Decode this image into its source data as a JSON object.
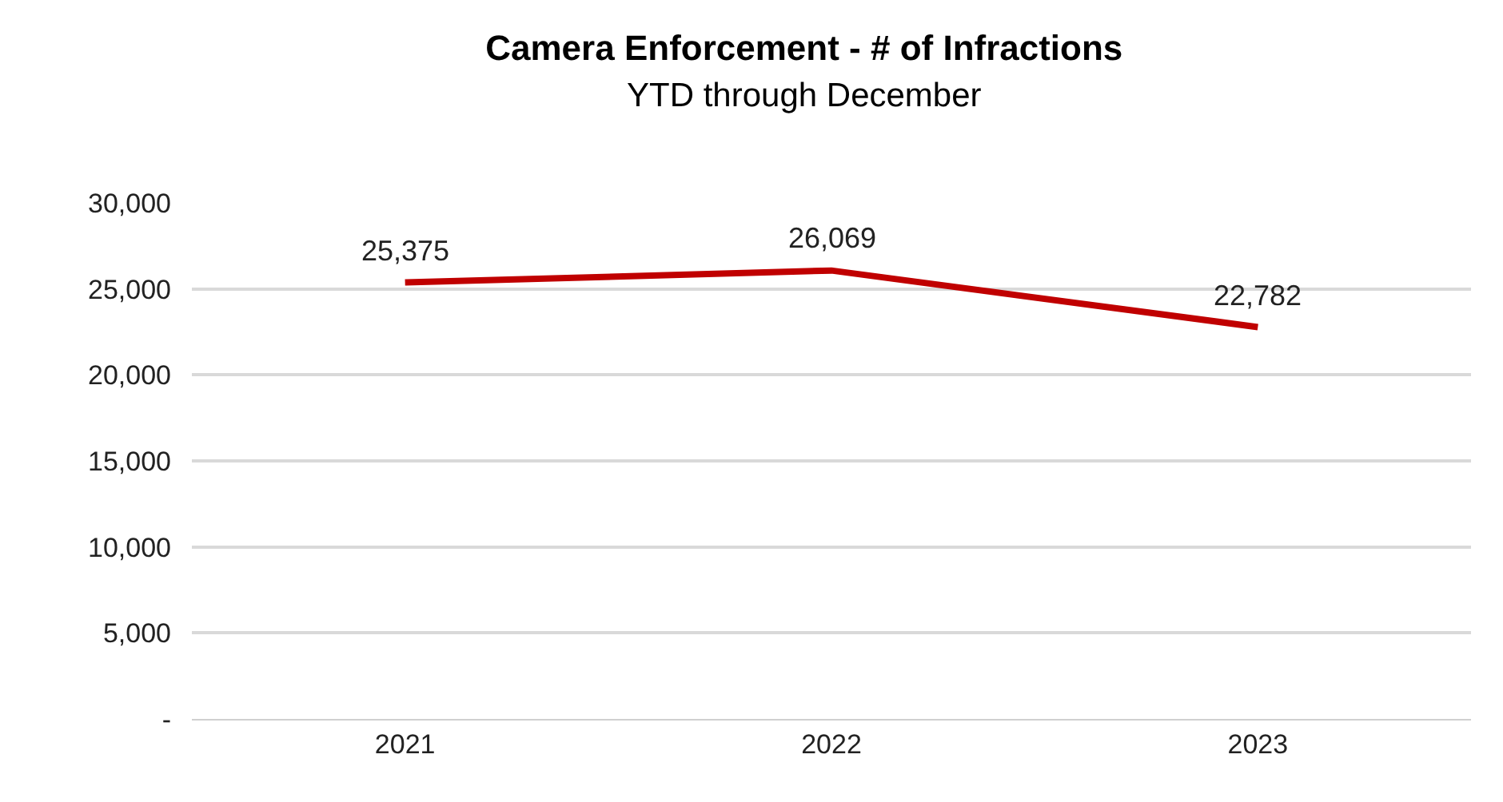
{
  "chart_data": {
    "type": "line",
    "title": "Camera Enforcement - # of Infractions",
    "subtitle": "YTD through December",
    "categories": [
      "2021",
      "2022",
      "2023"
    ],
    "series": [
      {
        "color": "#c00000",
        "values": [
          25375,
          26069,
          22782
        ],
        "value_labels": [
          "25,375",
          "26,069",
          "22,782"
        ]
      }
    ],
    "ylim": [
      0,
      30000
    ],
    "yticks": [
      {
        "value": 0,
        "label": "-"
      },
      {
        "value": 5000,
        "label": "5,000"
      },
      {
        "value": 10000,
        "label": "10,000"
      },
      {
        "value": 15000,
        "label": "15,000"
      },
      {
        "value": 20000,
        "label": "20,000"
      },
      {
        "value": 25000,
        "label": "25,000"
      },
      {
        "value": 30000,
        "label": "30,000"
      }
    ],
    "grid": "y",
    "marker": "none",
    "line_style": "solid"
  }
}
